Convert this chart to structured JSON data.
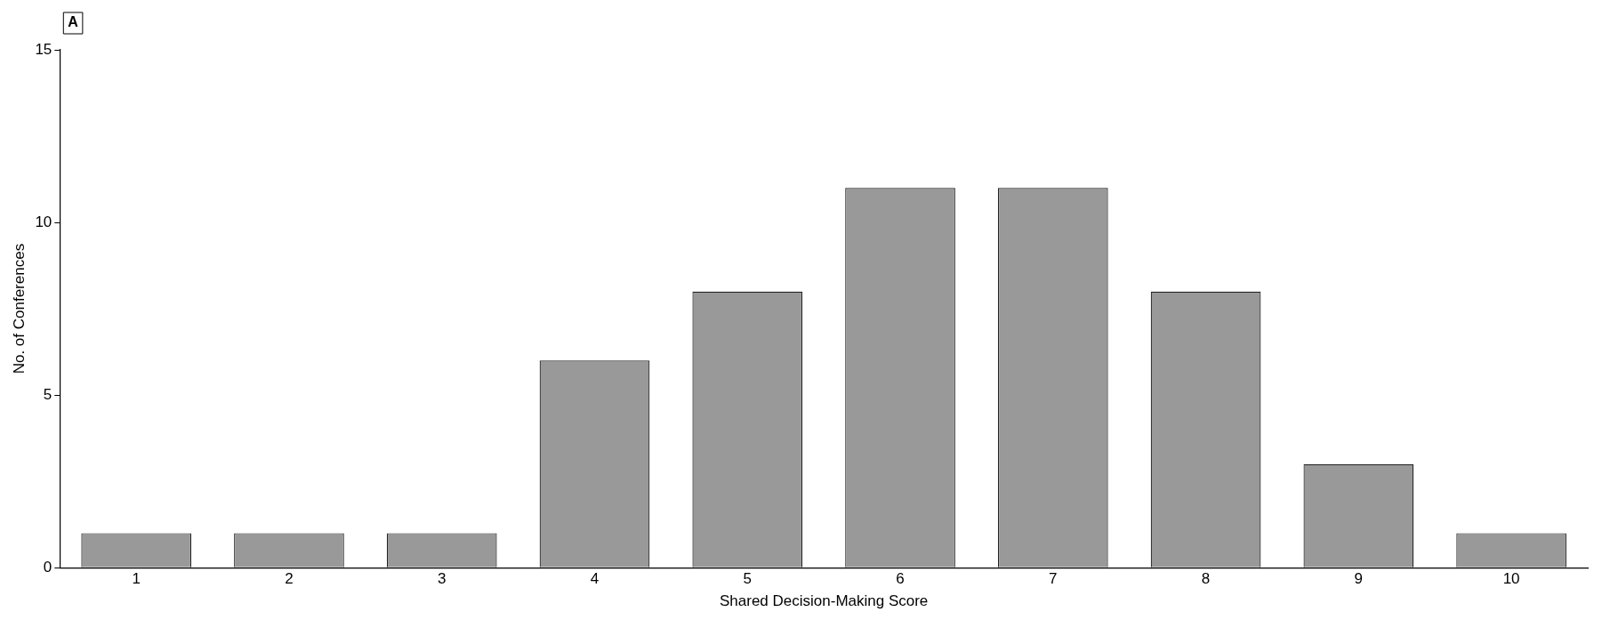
{
  "chart_data": {
    "type": "bar",
    "xlabel": "Shared Decision-Making Score",
    "ylabel": "No. of Conferences",
    "categories": [
      "1",
      "2",
      "3",
      "4",
      "5",
      "6",
      "7",
      "8",
      "9",
      "10"
    ],
    "values": [
      1,
      1,
      1,
      6,
      8,
      11,
      11,
      8,
      3,
      1
    ],
    "color": "#999999",
    "ylim": [
      0,
      15
    ],
    "yticks": [
      0,
      5,
      10,
      15
    ],
    "grid": false,
    "legend": false,
    "annotations": [
      "A"
    ]
  }
}
